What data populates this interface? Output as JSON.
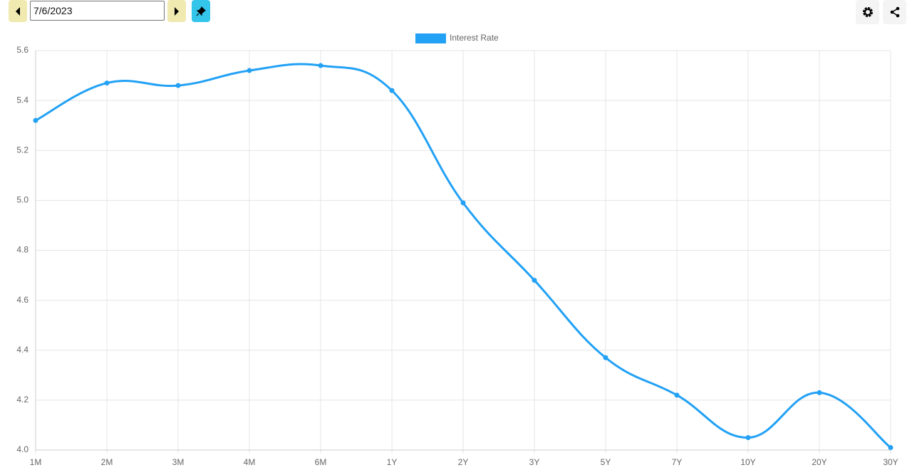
{
  "toolbar": {
    "date": "7/6/2023"
  },
  "chart_data": {
    "type": "line",
    "categories": [
      "1M",
      "2M",
      "3M",
      "4M",
      "6M",
      "1Y",
      "2Y",
      "3Y",
      "5Y",
      "7Y",
      "10Y",
      "20Y",
      "30Y"
    ],
    "series": [
      {
        "name": "Interest Rate",
        "color": "#22a1f5",
        "values": [
          5.32,
          5.47,
          5.46,
          5.52,
          5.54,
          5.44,
          4.99,
          4.68,
          4.37,
          4.22,
          4.05,
          4.23,
          4.01
        ]
      }
    ],
    "ylim": [
      4,
      5.6
    ],
    "yticks": [
      {
        "value": 4,
        "label": "4.0"
      },
      4.2,
      4.4,
      4.6,
      4.8,
      {
        "value": 5,
        "label": "5.0"
      },
      5.2,
      5.4,
      5.6
    ],
    "grid": true,
    "legend": "top"
  }
}
